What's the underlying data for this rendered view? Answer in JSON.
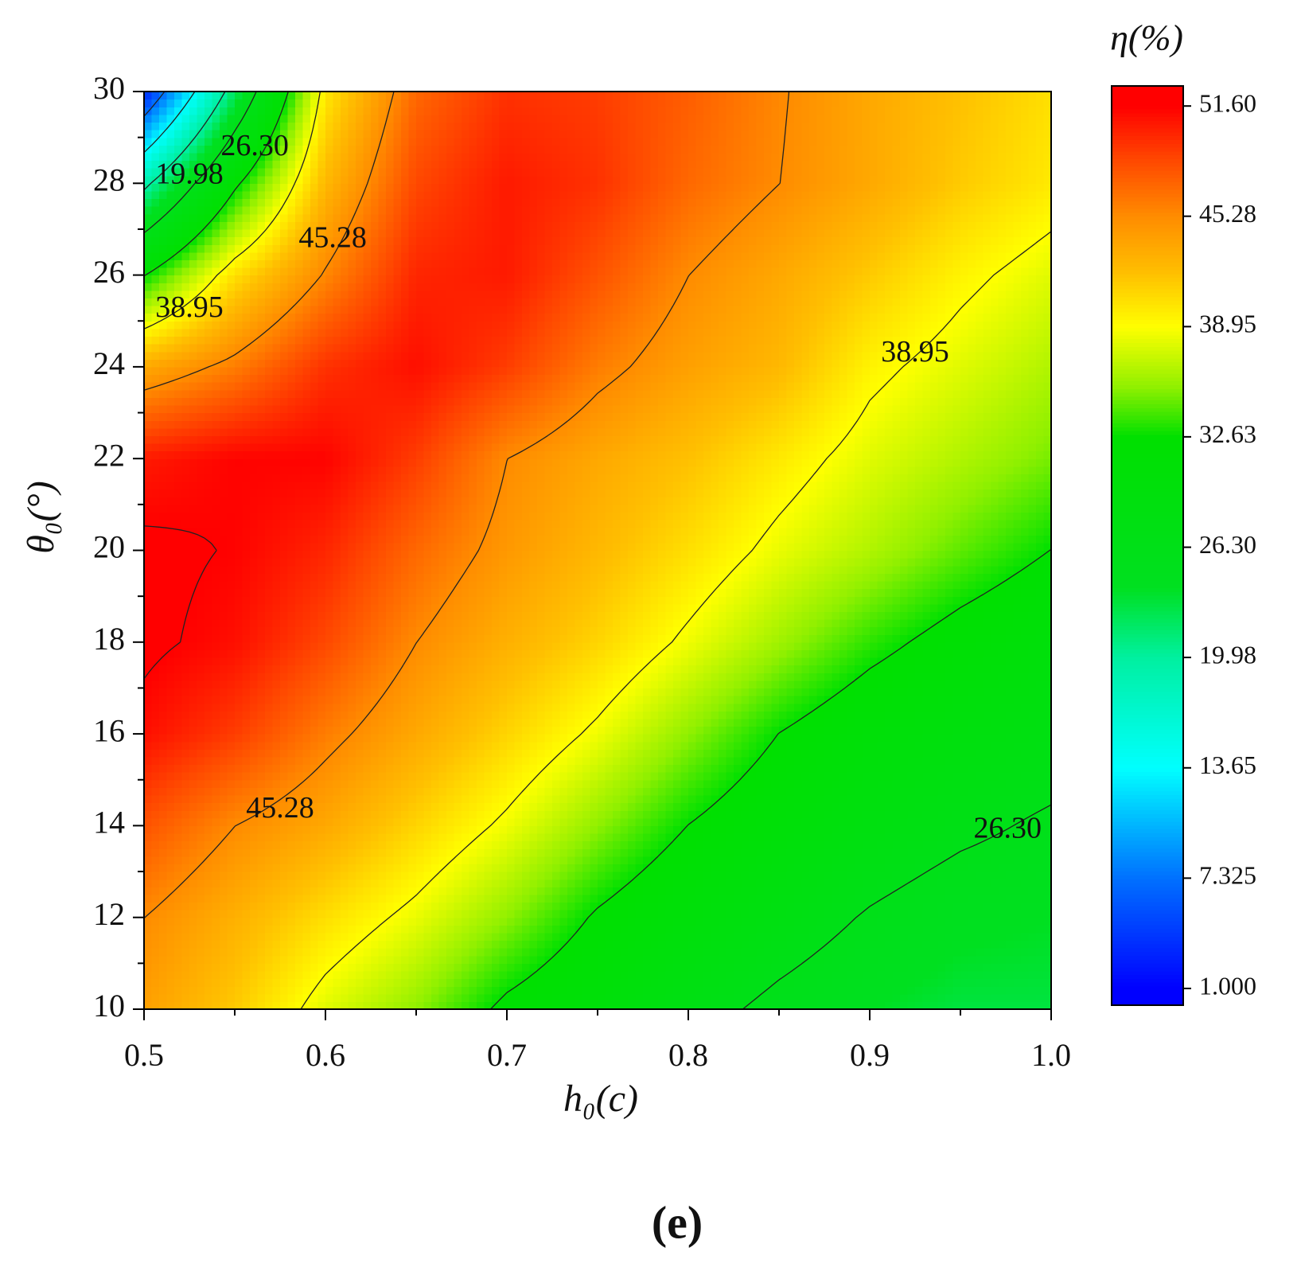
{
  "chart_data": {
    "type": "contour",
    "title": "η(%)",
    "xlabel": "h₀(c)",
    "ylabel": "θ₀(°)",
    "panel_label": "(e)",
    "x": [
      0.5,
      0.55,
      0.6,
      0.65,
      0.7,
      0.75,
      0.8,
      0.85,
      0.9,
      0.95,
      1.0
    ],
    "y": [
      10,
      12,
      14,
      16,
      18,
      20,
      22,
      24,
      26,
      28,
      30
    ],
    "z": [
      [
        44,
        41.5,
        38,
        35.5,
        32,
        30,
        27.5,
        25.5,
        24,
        23,
        23
      ],
      [
        45.3,
        43,
        40.5,
        38.3,
        35.5,
        32.3,
        30,
        28,
        26,
        24.5,
        24
      ],
      [
        48,
        45.3,
        43.5,
        41,
        38.5,
        35.5,
        32.6,
        30.5,
        28.5,
        27,
        25.8
      ],
      [
        51,
        49,
        46,
        43.5,
        41,
        38.5,
        35.5,
        32.6,
        30.5,
        29,
        28
      ],
      [
        52,
        51,
        48.5,
        45.3,
        43,
        41,
        38.5,
        36,
        33.5,
        31.5,
        30
      ],
      [
        52,
        51.5,
        50,
        47,
        44.5,
        42.5,
        40.5,
        38.3,
        36.5,
        34.5,
        32.6
      ],
      [
        50.5,
        51.5,
        51.5,
        49,
        45.3,
        43.5,
        42,
        40,
        38,
        36.5,
        35
      ],
      [
        43.5,
        46,
        49.5,
        51,
        49,
        46,
        44,
        42.5,
        39.5,
        38,
        36.5
      ],
      [
        32.5,
        40.5,
        45.5,
        50,
        50.5,
        48,
        45.3,
        43.5,
        41.5,
        39.5,
        38
      ],
      [
        19,
        32,
        42.5,
        48.5,
        50.5,
        49.5,
        47,
        45.3,
        43.5,
        41.5,
        40
      ],
      [
        3,
        22,
        40,
        47,
        49.5,
        49,
        47.5,
        45.5,
        43.5,
        42,
        40.5
      ]
    ],
    "xlim": [
      0.5,
      1.0
    ],
    "xticks": [
      0.5,
      0.6,
      0.7,
      0.8,
      0.9,
      {
        "value": 1.0,
        "label": "1.0"
      }
    ],
    "ylim": [
      10,
      30
    ],
    "yticks": [
      10,
      12,
      14,
      16,
      18,
      20,
      22,
      24,
      26,
      28,
      30
    ],
    "zlim": [
      0.04,
      52.75
    ],
    "zticks": [
      {
        "value": 1.0,
        "label": "1.000"
      },
      {
        "value": 7.325,
        "label": "7.325"
      },
      13.65,
      19.98,
      {
        "value": 26.3,
        "label": "26.30"
      },
      32.63,
      38.95,
      45.28,
      {
        "value": 51.6,
        "label": "51.60"
      }
    ],
    "colorscale": [
      [
        1,
        "#0000ff"
      ],
      [
        7.325,
        "#0070ff"
      ],
      [
        13.65,
        "#00ffff"
      ],
      [
        19.98,
        "#00f0a0"
      ],
      [
        24,
        "#00e020"
      ],
      [
        32.63,
        "#00e000"
      ],
      [
        35.5,
        "#90f000"
      ],
      [
        38.95,
        "#ffff00"
      ],
      [
        42,
        "#ffc000"
      ],
      [
        45.28,
        "#ff8c00"
      ],
      [
        48.5,
        "#ff4800"
      ],
      [
        51.6,
        "#ff0000"
      ]
    ],
    "contour_labels": [
      {
        "value": 26.3,
        "label": "26.30",
        "x": 0.561,
        "y": 28.76
      },
      {
        "value": 19.98,
        "label": "19.98",
        "x": 0.525,
        "y": 28.15
      },
      {
        "value": 45.28,
        "label": "45.28",
        "x": 0.604,
        "y": 26.76
      },
      {
        "value": 38.95,
        "label": "38.95",
        "x": 0.525,
        "y": 25.24
      },
      {
        "value": 38.95,
        "label": "38.95",
        "x": 0.925,
        "y": 24.27
      },
      {
        "value": 45.28,
        "label": "45.28",
        "x": 0.575,
        "y": 14.33
      },
      {
        "value": 26.3,
        "label": "26.30",
        "x": 0.976,
        "y": 13.89
      }
    ]
  }
}
